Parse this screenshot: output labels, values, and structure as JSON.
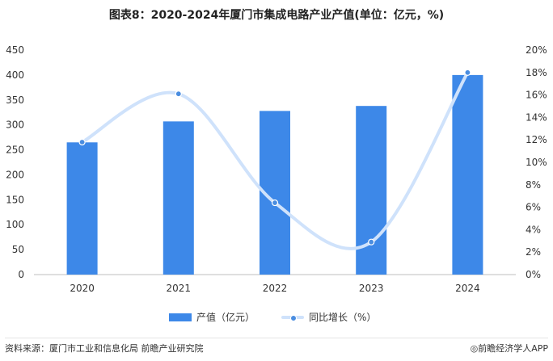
{
  "title": "图表8：2020-2024年厦门市集成电路产业产值(单位：亿元，%)",
  "footer": {
    "source": "资料来源：厦门市工业和信息化局 前瞻产业研究院",
    "brand": "◎前瞻经济学人APP"
  },
  "colors": {
    "bar": "#3d88e8",
    "line": "#cfe2fb",
    "point": "#4a8de0"
  },
  "chart_data": {
    "type": "bar",
    "categories": [
      "2020",
      "2021",
      "2022",
      "2023",
      "2024"
    ],
    "series": [
      {
        "name": "产值（亿元）",
        "type": "bar",
        "axis": "left",
        "values": [
          265,
          307,
          328,
          338,
          400
        ]
      },
      {
        "name": "同比增长（%）",
        "type": "line",
        "axis": "right",
        "values": [
          11.8,
          16.1,
          6.4,
          2.9,
          18.0
        ]
      }
    ],
    "left_axis": {
      "ylim": [
        0,
        450
      ],
      "ticks": [
        "0",
        "50",
        "100",
        "150",
        "200",
        "250",
        "300",
        "350",
        "400",
        "450"
      ]
    },
    "right_axis": {
      "ylim": [
        0,
        20
      ],
      "ticks": [
        "0%",
        "2%",
        "4%",
        "6%",
        "8%",
        "10%",
        "12%",
        "14%",
        "16%",
        "18%",
        "20%"
      ]
    },
    "legend_position": "bottom",
    "grid": false
  }
}
